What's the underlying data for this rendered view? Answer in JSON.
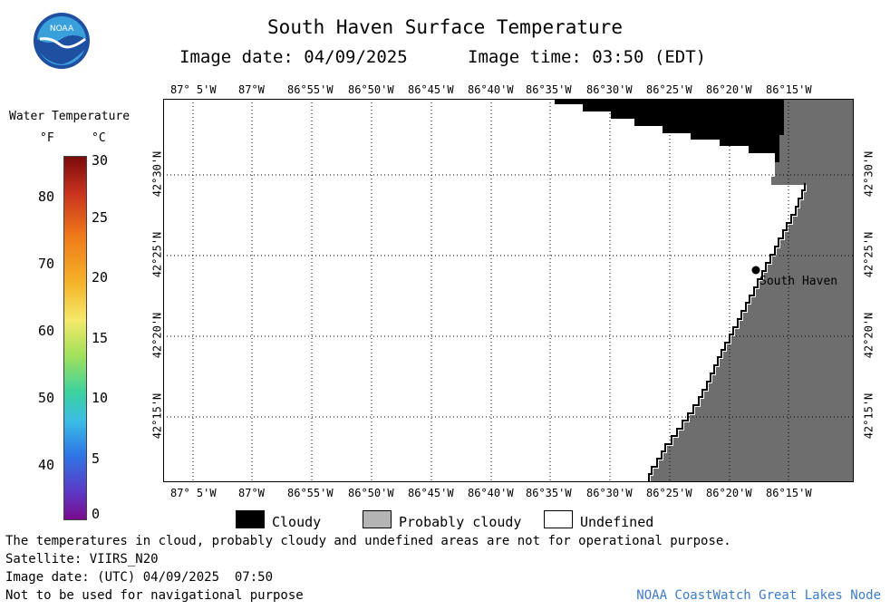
{
  "header": {
    "title": "South Haven Surface Temperature",
    "image_date_label": "Image date: 04/09/2025",
    "image_time_label": "Image time: 03:50 (EDT)"
  },
  "logo": {
    "text": "NOAA",
    "colors": {
      "outer": "#1f4fa0",
      "inner": "#3aa0dc",
      "bird": "#ffffff"
    }
  },
  "colorbar": {
    "title": "Water Temperature",
    "unit_f": "°F",
    "unit_c": "°C",
    "f_ticks": [
      "80",
      "70",
      "60",
      "50",
      "40"
    ],
    "c_ticks": [
      "30",
      "25",
      "20",
      "15",
      "10",
      "5",
      "0"
    ],
    "colors": [
      "#7a0a0a",
      "#c8321e",
      "#f07a1a",
      "#f5b42a",
      "#f5e96a",
      "#9fe05a",
      "#3cd2a0",
      "#3cbce6",
      "#2e78e6",
      "#5a3cc8",
      "#7a0a8c"
    ]
  },
  "map": {
    "lon_labels": [
      "87° 5'W",
      "87°W",
      "86°55'W",
      "86°50'W",
      "86°45'W",
      "86°40'W",
      "86°35'W",
      "86°30'W",
      "86°25'W",
      "86°20'W",
      "86°15'W"
    ],
    "lat_labels": [
      "42°30'N",
      "42°25'N",
      "42°20'N",
      "42°15'N"
    ],
    "place_label": "South Haven",
    "colors": {
      "land": "#6e6e6e",
      "cloud": "#000000",
      "water": "#ffffff"
    }
  },
  "legend": {
    "cloudy": "Cloudy",
    "probably_cloudy": "Probably cloudy",
    "undefined": "Undefined",
    "colors": {
      "cloudy": "#000000",
      "probably_cloudy": "#b4b4b4",
      "undefined": "#ffffff"
    }
  },
  "footer": {
    "disclaimer": "The temperatures in cloud, probably cloudy and undefined areas are not for operational purpose.",
    "satellite": "Satellite: VIIRS_N20",
    "utc_date": "Image date: (UTC) 04/09/2025  07:50",
    "nav_warning": "Not to be used for navigational purpose",
    "credit": "NOAA CoastWatch Great Lakes Node"
  }
}
